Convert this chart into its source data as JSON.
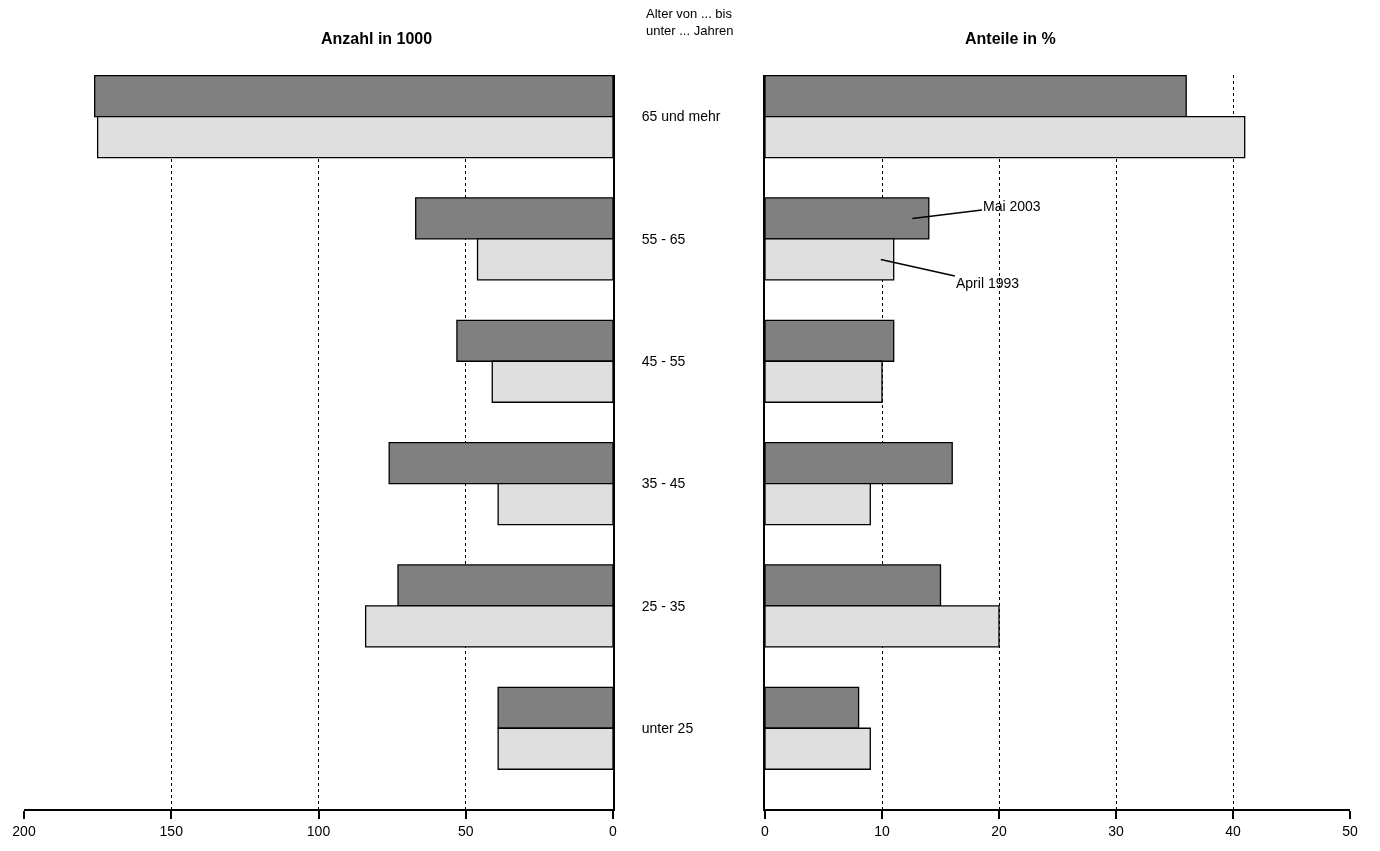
{
  "chart_data": [
    {
      "type": "bar",
      "orientation": "horizontal",
      "title": "Anzahl in 1000",
      "categories": [
        "65 und mehr",
        "55 - 65",
        "45 - 55",
        "35 - 45",
        "25 - 35",
        "unter 25"
      ],
      "series": [
        {
          "color": "#808080",
          "values": [
            176,
            67,
            53,
            76,
            73,
            39
          ]
        },
        {
          "color": "#dfdfdf",
          "values": [
            175,
            46,
            41,
            39,
            84,
            39
          ]
        }
      ],
      "xlim": [
        200,
        0
      ],
      "xticks": [
        200,
        150,
        100,
        50,
        0
      ],
      "grid": "x"
    },
    {
      "type": "bar",
      "orientation": "horizontal",
      "title": "Anteile in %",
      "categories": [
        null,
        null,
        null,
        null,
        null,
        null
      ],
      "tick_labels": "x",
      "series": [
        {
          "name": "Mai 2003",
          "color": "#808080",
          "values": [
            36,
            14,
            11,
            16,
            15,
            8
          ]
        },
        {
          "name": "April 1993",
          "color": "#dfdfdf",
          "values": [
            41,
            11,
            10,
            9,
            20,
            9
          ]
        }
      ],
      "xlim": [
        0,
        50
      ],
      "xticks": [
        0,
        10,
        20,
        30,
        40,
        50
      ],
      "grid": "x",
      "annotations": [
        "Alter von ... bis\nunter ... Jahren"
      ]
    }
  ]
}
